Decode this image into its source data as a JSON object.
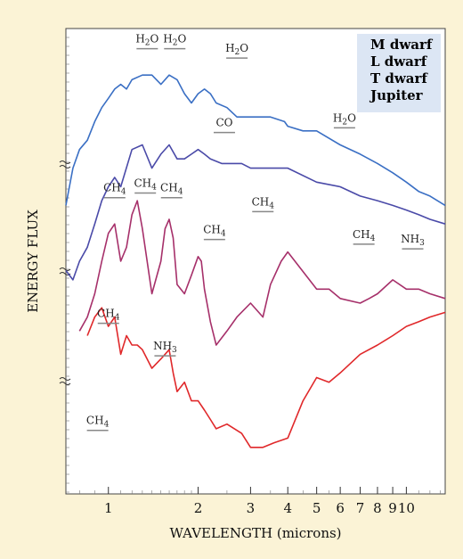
{
  "chart_data": {
    "type": "line",
    "xlabel": "WAVELENGTH (microns)",
    "ylabel": "ENERGY FLUX",
    "x_scale": "log",
    "xlim": [
      0.72,
      13.5
    ],
    "x_ticks": [
      "1",
      "2",
      "3",
      "4",
      "5",
      "6",
      "7",
      "8",
      "9",
      "10"
    ],
    "legend_position": "top-right",
    "legend": [
      {
        "label": "M dwarf",
        "color": "#3a6fc4"
      },
      {
        "label": "L dwarf",
        "color": "#4a4aa8"
      },
      {
        "label": "T dwarf",
        "color": "#a6306a"
      },
      {
        "label": "Jupiter",
        "color": "#e0282a"
      }
    ],
    "series": [
      {
        "name": "M dwarf",
        "color": "#3a6fc4",
        "points": [
          [
            0.72,
            0.62
          ],
          [
            0.76,
            0.7
          ],
          [
            0.8,
            0.74
          ],
          [
            0.85,
            0.76
          ],
          [
            0.9,
            0.8
          ],
          [
            0.95,
            0.83
          ],
          [
            1.0,
            0.85
          ],
          [
            1.05,
            0.87
          ],
          [
            1.1,
            0.88
          ],
          [
            1.15,
            0.87
          ],
          [
            1.2,
            0.89
          ],
          [
            1.3,
            0.9
          ],
          [
            1.4,
            0.9
          ],
          [
            1.5,
            0.88
          ],
          [
            1.6,
            0.9
          ],
          [
            1.7,
            0.89
          ],
          [
            1.8,
            0.86
          ],
          [
            1.9,
            0.84
          ],
          [
            2.0,
            0.86
          ],
          [
            2.1,
            0.87
          ],
          [
            2.2,
            0.86
          ],
          [
            2.3,
            0.84
          ],
          [
            2.5,
            0.83
          ],
          [
            2.7,
            0.81
          ],
          [
            2.9,
            0.81
          ],
          [
            3.2,
            0.81
          ],
          [
            3.5,
            0.81
          ],
          [
            3.9,
            0.8
          ],
          [
            4.0,
            0.79
          ],
          [
            4.5,
            0.78
          ],
          [
            5.0,
            0.78
          ],
          [
            6.0,
            0.75
          ],
          [
            7.0,
            0.73
          ],
          [
            8.0,
            0.71
          ],
          [
            9.0,
            0.69
          ],
          [
            10.0,
            0.67
          ],
          [
            11.0,
            0.65
          ],
          [
            12.0,
            0.64
          ],
          [
            13.5,
            0.62
          ]
        ]
      },
      {
        "name": "L dwarf",
        "color": "#4a4aa8",
        "points": [
          [
            0.72,
            0.48
          ],
          [
            0.76,
            0.46
          ],
          [
            0.8,
            0.5
          ],
          [
            0.85,
            0.53
          ],
          [
            0.9,
            0.58
          ],
          [
            0.95,
            0.63
          ],
          [
            1.0,
            0.66
          ],
          [
            1.05,
            0.68
          ],
          [
            1.1,
            0.66
          ],
          [
            1.2,
            0.74
          ],
          [
            1.3,
            0.75
          ],
          [
            1.4,
            0.7
          ],
          [
            1.5,
            0.73
          ],
          [
            1.6,
            0.75
          ],
          [
            1.7,
            0.72
          ],
          [
            1.8,
            0.72
          ],
          [
            1.9,
            0.73
          ],
          [
            2.0,
            0.74
          ],
          [
            2.1,
            0.73
          ],
          [
            2.2,
            0.72
          ],
          [
            2.4,
            0.71
          ],
          [
            2.6,
            0.71
          ],
          [
            2.8,
            0.71
          ],
          [
            3.0,
            0.7
          ],
          [
            3.5,
            0.7
          ],
          [
            4.0,
            0.7
          ],
          [
            5.0,
            0.67
          ],
          [
            6.0,
            0.66
          ],
          [
            7.0,
            0.64
          ],
          [
            8.0,
            0.63
          ],
          [
            9.0,
            0.62
          ],
          [
            10.0,
            0.61
          ],
          [
            11.0,
            0.6
          ],
          [
            12.0,
            0.59
          ],
          [
            13.5,
            0.58
          ]
        ]
      },
      {
        "name": "T dwarf",
        "color": "#a6306a",
        "points": [
          [
            0.8,
            0.35
          ],
          [
            0.85,
            0.38
          ],
          [
            0.9,
            0.43
          ],
          [
            0.95,
            0.5
          ],
          [
            1.0,
            0.56
          ],
          [
            1.05,
            0.58
          ],
          [
            1.1,
            0.5
          ],
          [
            1.15,
            0.53
          ],
          [
            1.2,
            0.6
          ],
          [
            1.25,
            0.63
          ],
          [
            1.3,
            0.57
          ],
          [
            1.4,
            0.43
          ],
          [
            1.5,
            0.5
          ],
          [
            1.55,
            0.57
          ],
          [
            1.6,
            0.59
          ],
          [
            1.65,
            0.55
          ],
          [
            1.7,
            0.45
          ],
          [
            1.8,
            0.43
          ],
          [
            1.9,
            0.47
          ],
          [
            2.0,
            0.51
          ],
          [
            2.05,
            0.5
          ],
          [
            2.1,
            0.44
          ],
          [
            2.2,
            0.37
          ],
          [
            2.3,
            0.32
          ],
          [
            2.5,
            0.35
          ],
          [
            2.7,
            0.38
          ],
          [
            3.0,
            0.41
          ],
          [
            3.3,
            0.38
          ],
          [
            3.5,
            0.45
          ],
          [
            3.8,
            0.5
          ],
          [
            4.0,
            0.52
          ],
          [
            5.0,
            0.44
          ],
          [
            5.5,
            0.44
          ],
          [
            6.0,
            0.42
          ],
          [
            7.0,
            0.41
          ],
          [
            7.5,
            0.42
          ],
          [
            8.0,
            0.43
          ],
          [
            9.0,
            0.46
          ],
          [
            10.0,
            0.44
          ],
          [
            11.0,
            0.44
          ],
          [
            12.0,
            0.43
          ],
          [
            13.5,
            0.42
          ]
        ]
      },
      {
        "name": "Jupiter",
        "color": "#e0282a",
        "points": [
          [
            0.85,
            0.34
          ],
          [
            0.9,
            0.38
          ],
          [
            0.95,
            0.4
          ],
          [
            1.0,
            0.36
          ],
          [
            1.05,
            0.38
          ],
          [
            1.1,
            0.3
          ],
          [
            1.15,
            0.34
          ],
          [
            1.2,
            0.32
          ],
          [
            1.25,
            0.32
          ],
          [
            1.3,
            0.31
          ],
          [
            1.4,
            0.27
          ],
          [
            1.5,
            0.29
          ],
          [
            1.6,
            0.31
          ],
          [
            1.65,
            0.26
          ],
          [
            1.7,
            0.22
          ],
          [
            1.8,
            0.24
          ],
          [
            1.9,
            0.2
          ],
          [
            2.0,
            0.2
          ],
          [
            2.1,
            0.18
          ],
          [
            2.2,
            0.16
          ],
          [
            2.3,
            0.14
          ],
          [
            2.5,
            0.15
          ],
          [
            2.8,
            0.13
          ],
          [
            3.0,
            0.1
          ],
          [
            3.3,
            0.1
          ],
          [
            3.6,
            0.11
          ],
          [
            4.0,
            0.12
          ],
          [
            4.5,
            0.2
          ],
          [
            5.0,
            0.25
          ],
          [
            5.5,
            0.24
          ],
          [
            6.0,
            0.26
          ],
          [
            7.0,
            0.3
          ],
          [
            8.0,
            0.32
          ],
          [
            9.0,
            0.34
          ],
          [
            10.0,
            0.36
          ],
          [
            11.0,
            0.37
          ],
          [
            12.0,
            0.38
          ],
          [
            13.5,
            0.39
          ]
        ]
      }
    ],
    "annotations": [
      {
        "text": "H2O",
        "x": 1.35,
        "y": 0.97,
        "line": true
      },
      {
        "text": "H2O",
        "x": 1.67,
        "y": 0.97,
        "line": true
      },
      {
        "text": "H2O",
        "x": 2.7,
        "y": 0.95,
        "line": true
      },
      {
        "text": "CO",
        "x": 2.45,
        "y": 0.79,
        "line": true
      },
      {
        "text": "H2O",
        "x": 6.2,
        "y": 0.8,
        "line": true
      },
      {
        "text": "CH4",
        "x": 1.05,
        "y": 0.65,
        "line": true
      },
      {
        "text": "CH4",
        "x": 1.33,
        "y": 0.66,
        "line": true
      },
      {
        "text": "CH4",
        "x": 1.63,
        "y": 0.65,
        "line": true
      },
      {
        "text": "CH4",
        "x": 2.27,
        "y": 0.56,
        "line": true
      },
      {
        "text": "CH4",
        "x": 3.3,
        "y": 0.62,
        "line": true
      },
      {
        "text": "CH4",
        "x": 7.2,
        "y": 0.55,
        "line": true
      },
      {
        "text": "NH3",
        "x": 10.5,
        "y": 0.54,
        "line": true
      },
      {
        "text": "CH4",
        "x": 1.0,
        "y": 0.38,
        "line": true
      },
      {
        "text": "NH3",
        "x": 1.55,
        "y": 0.31,
        "line": true
      },
      {
        "text": "CH4",
        "x": 0.92,
        "y": 0.15,
        "line": true
      }
    ]
  }
}
